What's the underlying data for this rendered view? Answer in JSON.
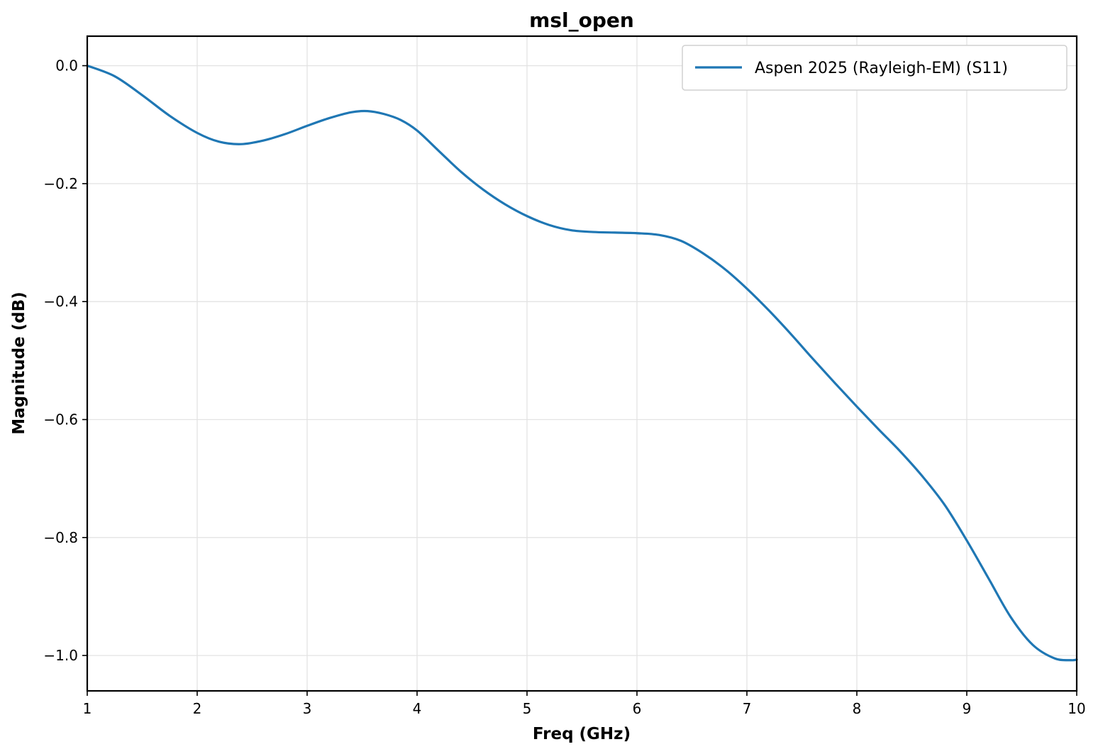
{
  "chart_data": {
    "type": "line",
    "title": "msl_open",
    "xlabel": "Freq (GHz)",
    "ylabel": "Magnitude (dB)",
    "xlim": [
      1,
      10
    ],
    "ylim": [
      -1.06,
      0.05
    ],
    "xticks": [
      1,
      2,
      3,
      4,
      5,
      6,
      7,
      8,
      9,
      10
    ],
    "xtick_labels": [
      "1",
      "2",
      "3",
      "4",
      "5",
      "6",
      "7",
      "8",
      "9",
      "10"
    ],
    "yticks": [
      0.0,
      -0.2,
      -0.4,
      -0.6,
      -0.8,
      -1.0
    ],
    "ytick_labels": [
      "0.0",
      "−0.2",
      "−0.4",
      "−0.6",
      "−0.8",
      "−1.0"
    ],
    "grid": true,
    "legend": "top-right",
    "series": [
      {
        "name": "Aspen 2025 (Rayleigh-EM) (S11)",
        "color": "#1f77b4",
        "x": [
          1.0,
          1.25,
          1.5,
          1.75,
          2.0,
          2.2,
          2.4,
          2.6,
          2.8,
          3.0,
          3.2,
          3.4,
          3.55,
          3.7,
          3.85,
          4.0,
          4.2,
          4.4,
          4.6,
          4.8,
          5.0,
          5.2,
          5.4,
          5.6,
          5.8,
          6.0,
          6.2,
          6.4,
          6.6,
          6.8,
          7.0,
          7.2,
          7.4,
          7.6,
          7.8,
          8.0,
          8.2,
          8.4,
          8.6,
          8.8,
          9.0,
          9.2,
          9.4,
          9.6,
          9.8,
          9.95,
          10.0
        ],
        "y": [
          0.0,
          -0.018,
          -0.05,
          -0.085,
          -0.114,
          -0.129,
          -0.133,
          -0.127,
          -0.116,
          -0.102,
          -0.089,
          -0.079,
          -0.077,
          -0.082,
          -0.092,
          -0.11,
          -0.145,
          -0.18,
          -0.21,
          -0.235,
          -0.255,
          -0.27,
          -0.279,
          -0.282,
          -0.283,
          -0.284,
          -0.287,
          -0.297,
          -0.318,
          -0.345,
          -0.378,
          -0.415,
          -0.455,
          -0.497,
          -0.538,
          -0.578,
          -0.617,
          -0.655,
          -0.697,
          -0.745,
          -0.805,
          -0.87,
          -0.935,
          -0.982,
          -1.005,
          -1.008,
          -1.007
        ]
      }
    ]
  }
}
